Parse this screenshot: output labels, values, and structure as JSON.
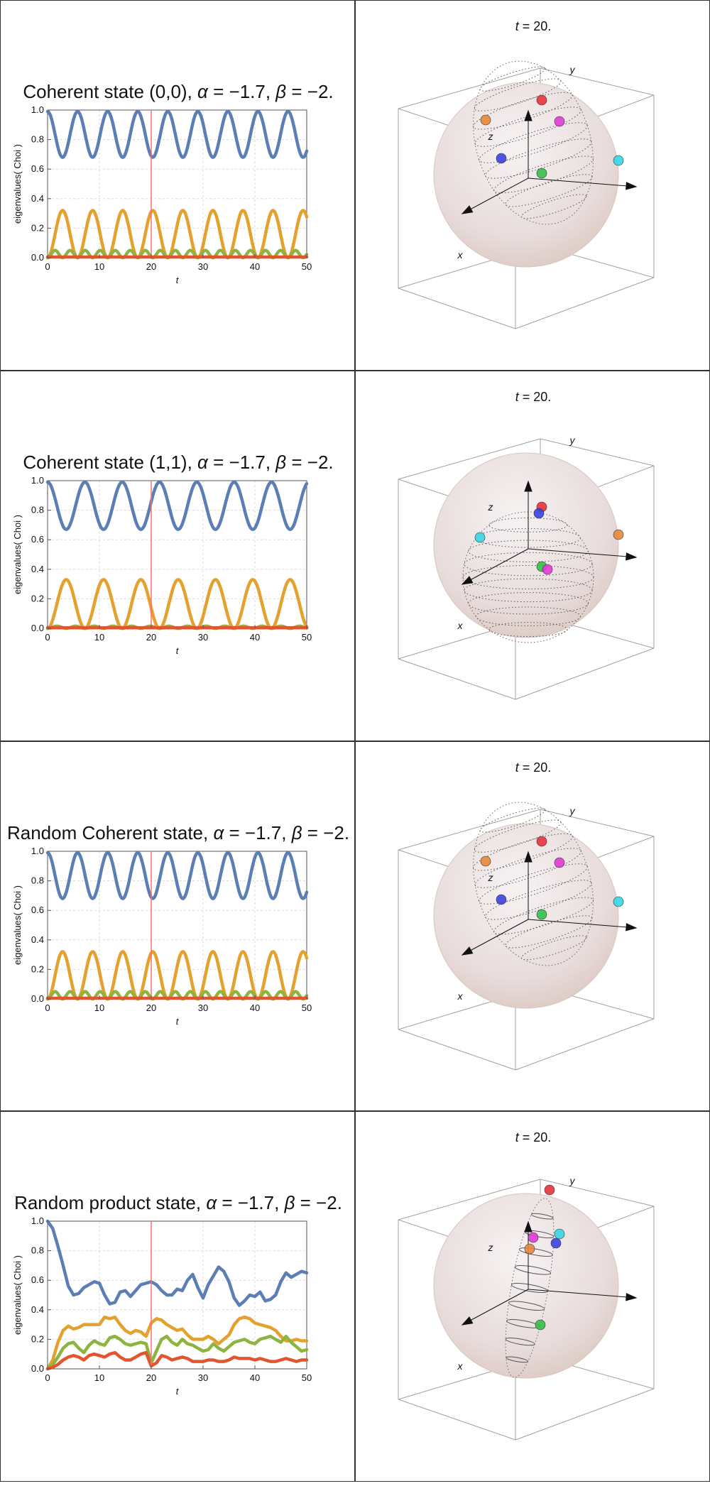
{
  "colors": {
    "blue": "#5b7fb5",
    "orange": "#e5a12e",
    "green": "#8db43e",
    "red": "#e2552f",
    "marker": "#ff6f6f",
    "grid": "#d9d9d9",
    "axis": "#555555",
    "box": "#a0a0a0",
    "border": "#333333"
  },
  "common": {
    "y_axis_label": "eigenvalues( Choi )",
    "x_axis_label": "t",
    "time_label_prefix": "t",
    "time_label_value": "20.",
    "xticks": [
      "0",
      "10",
      "20",
      "30",
      "40",
      "50"
    ],
    "yticks": [
      "0.0",
      "0.2",
      "0.4",
      "0.6",
      "0.8",
      "1.0"
    ],
    "axis_labels_3d": {
      "x": "x",
      "y": "y",
      "z": "z"
    }
  },
  "panels": [
    {
      "title_prefix": "Coherent state (0,0),",
      "alpha_value": "−1.7",
      "beta_value": "−2.",
      "bloch": {
        "shape": "ellipsoid-tilted",
        "dots": [
          "red",
          "magenta",
          "orange",
          "blue",
          "cyan",
          "green"
        ]
      }
    },
    {
      "title_prefix": "Coherent state (1,1),",
      "alpha_value": "−1.7",
      "beta_value": "−2.",
      "bloch": {
        "shape": "sphere-lower",
        "dots": [
          "red",
          "blue",
          "cyan",
          "orange",
          "green",
          "magenta"
        ]
      }
    },
    {
      "title_prefix": "Random Coherent state,",
      "alpha_value": "−1.7",
      "beta_value": "−2.",
      "bloch": {
        "shape": "ellipsoid-tilted",
        "dots": [
          "red",
          "magenta",
          "orange",
          "blue",
          "cyan",
          "green"
        ]
      }
    },
    {
      "title_prefix": "Random product state,",
      "alpha_value": "−1.7",
      "beta_value": "−2.",
      "bloch": {
        "shape": "needle",
        "dots": [
          "red",
          "cyan",
          "magenta",
          "blue",
          "orange",
          "green"
        ]
      }
    }
  ],
  "chart_data": [
    {
      "type": "line",
      "marker_x": 20,
      "xlim": [
        0,
        50
      ],
      "ylim": [
        0,
        1
      ],
      "grid": true,
      "series": [
        {
          "color": "blue",
          "style": "periodic",
          "period": 5.8,
          "min": 0.68,
          "max": 0.99,
          "start": 1.0,
          "phase": 0
        },
        {
          "color": "orange",
          "style": "periodic",
          "period": 5.8,
          "min": 0.0,
          "max": 0.32,
          "start": 0.0,
          "phase": 0
        },
        {
          "color": "green",
          "style": "periodic",
          "period": 2.9,
          "min": 0.0,
          "max": 0.05,
          "start": 0.0,
          "phase": 0
        },
        {
          "color": "red",
          "style": "flat",
          "value": 0.005
        }
      ]
    },
    {
      "type": "line",
      "marker_x": 20,
      "xlim": [
        0,
        50
      ],
      "ylim": [
        0,
        1
      ],
      "grid": true,
      "series": [
        {
          "color": "blue",
          "style": "periodic",
          "period": 7.2,
          "min": 0.67,
          "max": 0.99,
          "start": 1.0,
          "phase": 0
        },
        {
          "color": "orange",
          "style": "periodic",
          "period": 7.2,
          "min": 0.0,
          "max": 0.33,
          "start": 0.0,
          "phase": 0
        },
        {
          "color": "green",
          "style": "periodic",
          "period": 3.6,
          "min": 0.0,
          "max": 0.015,
          "start": 0.0,
          "phase": 0
        },
        {
          "color": "red",
          "style": "flat",
          "value": 0.004
        }
      ]
    },
    {
      "type": "line",
      "marker_x": 20,
      "xlim": [
        0,
        50
      ],
      "ylim": [
        0,
        1
      ],
      "grid": true,
      "series": [
        {
          "color": "blue",
          "style": "periodic",
          "period": 5.8,
          "min": 0.68,
          "max": 0.99,
          "start": 1.0,
          "phase": 0
        },
        {
          "color": "orange",
          "style": "periodic",
          "period": 5.8,
          "min": 0.0,
          "max": 0.32,
          "start": 0.0,
          "phase": 0
        },
        {
          "color": "green",
          "style": "periodic",
          "period": 2.9,
          "min": 0.0,
          "max": 0.05,
          "start": 0.0,
          "phase": 0
        },
        {
          "color": "red",
          "style": "flat",
          "value": 0.005
        }
      ]
    },
    {
      "type": "line",
      "marker_x": 20,
      "xlim": [
        0,
        50
      ],
      "ylim": [
        0,
        1
      ],
      "grid": true,
      "series": [
        {
          "color": "blue",
          "style": "points",
          "x": [
            0,
            1,
            2,
            3,
            4,
            5,
            6,
            7,
            8,
            9,
            10,
            11,
            12,
            13,
            14,
            15,
            16,
            17,
            18,
            19,
            20,
            21,
            22,
            23,
            24,
            25,
            26,
            27,
            28,
            29,
            30,
            31,
            32,
            33,
            34,
            35,
            36,
            37,
            38,
            39,
            40,
            41,
            42,
            43,
            44,
            45,
            46,
            47,
            48,
            49,
            50
          ],
          "y": [
            1.0,
            0.95,
            0.83,
            0.7,
            0.56,
            0.5,
            0.51,
            0.55,
            0.57,
            0.59,
            0.58,
            0.5,
            0.44,
            0.45,
            0.52,
            0.53,
            0.49,
            0.53,
            0.57,
            0.58,
            0.59,
            0.57,
            0.53,
            0.5,
            0.5,
            0.54,
            0.53,
            0.6,
            0.64,
            0.55,
            0.48,
            0.57,
            0.63,
            0.69,
            0.66,
            0.59,
            0.48,
            0.43,
            0.46,
            0.5,
            0.49,
            0.52,
            0.46,
            0.47,
            0.5,
            0.59,
            0.65,
            0.62,
            0.64,
            0.66,
            0.65
          ]
        },
        {
          "color": "orange",
          "style": "points",
          "x": [
            0,
            1,
            2,
            3,
            4,
            5,
            6,
            7,
            8,
            9,
            10,
            11,
            12,
            13,
            14,
            15,
            16,
            17,
            18,
            19,
            20,
            21,
            22,
            23,
            24,
            25,
            26,
            27,
            28,
            29,
            30,
            31,
            32,
            33,
            34,
            35,
            36,
            37,
            38,
            39,
            40,
            41,
            42,
            43,
            44,
            45,
            46,
            47,
            48,
            49,
            50
          ],
          "y": [
            0.0,
            0.06,
            0.18,
            0.26,
            0.29,
            0.27,
            0.28,
            0.3,
            0.3,
            0.3,
            0.3,
            0.35,
            0.34,
            0.35,
            0.3,
            0.26,
            0.24,
            0.26,
            0.25,
            0.22,
            0.31,
            0.34,
            0.33,
            0.3,
            0.28,
            0.26,
            0.27,
            0.23,
            0.2,
            0.2,
            0.2,
            0.22,
            0.2,
            0.17,
            0.2,
            0.23,
            0.3,
            0.34,
            0.35,
            0.34,
            0.31,
            0.3,
            0.29,
            0.28,
            0.26,
            0.22,
            0.19,
            0.19,
            0.2,
            0.19,
            0.19
          ]
        },
        {
          "color": "green",
          "style": "points",
          "x": [
            0,
            1,
            2,
            3,
            4,
            5,
            6,
            7,
            8,
            9,
            10,
            11,
            12,
            13,
            14,
            15,
            16,
            17,
            18,
            19,
            20,
            21,
            22,
            23,
            24,
            25,
            26,
            27,
            28,
            29,
            30,
            31,
            32,
            33,
            34,
            35,
            36,
            37,
            38,
            39,
            40,
            41,
            42,
            43,
            44,
            45,
            46,
            47,
            48,
            49,
            50
          ],
          "y": [
            0.0,
            0.03,
            0.08,
            0.14,
            0.17,
            0.18,
            0.14,
            0.11,
            0.16,
            0.19,
            0.17,
            0.16,
            0.21,
            0.22,
            0.2,
            0.17,
            0.16,
            0.17,
            0.18,
            0.17,
            0.04,
            0.12,
            0.2,
            0.22,
            0.18,
            0.16,
            0.2,
            0.17,
            0.16,
            0.14,
            0.12,
            0.13,
            0.17,
            0.14,
            0.12,
            0.15,
            0.18,
            0.19,
            0.2,
            0.18,
            0.17,
            0.2,
            0.21,
            0.22,
            0.2,
            0.18,
            0.22,
            0.18,
            0.15,
            0.12,
            0.13
          ]
        },
        {
          "color": "red",
          "style": "points",
          "x": [
            0,
            1,
            2,
            3,
            4,
            5,
            6,
            7,
            8,
            9,
            10,
            11,
            12,
            13,
            14,
            15,
            16,
            17,
            18,
            19,
            20,
            21,
            22,
            23,
            24,
            25,
            26,
            27,
            28,
            29,
            30,
            31,
            32,
            33,
            34,
            35,
            36,
            37,
            38,
            39,
            40,
            41,
            42,
            43,
            44,
            45,
            46,
            47,
            48,
            49,
            50
          ],
          "y": [
            0.0,
            0.01,
            0.03,
            0.06,
            0.08,
            0.09,
            0.08,
            0.06,
            0.09,
            0.1,
            0.09,
            0.08,
            0.1,
            0.11,
            0.08,
            0.06,
            0.06,
            0.08,
            0.1,
            0.11,
            0.02,
            0.04,
            0.09,
            0.08,
            0.06,
            0.07,
            0.08,
            0.07,
            0.05,
            0.05,
            0.05,
            0.06,
            0.06,
            0.05,
            0.05,
            0.06,
            0.08,
            0.07,
            0.07,
            0.07,
            0.06,
            0.07,
            0.06,
            0.05,
            0.05,
            0.06,
            0.07,
            0.06,
            0.05,
            0.06,
            0.06
          ]
        }
      ]
    }
  ]
}
